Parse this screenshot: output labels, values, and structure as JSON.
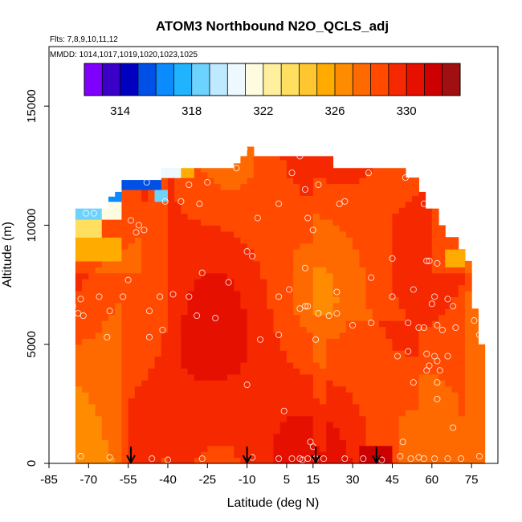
{
  "chart_data": {
    "type": "heatmap",
    "title": "ATOM3 Northbound N2O_QCLS_adj",
    "flights_text": "Flts: 7,8,9,10,11,12",
    "dates_text": "MMDD: 1014,1017,1019,1020,1023,1025",
    "xlabel": "Latitude (deg N)",
    "ylabel": "Altitude (m)",
    "xlim": [
      -85,
      85
    ],
    "ylim": [
      0,
      17500
    ],
    "x_ticks": [
      -85,
      -70,
      -55,
      -40,
      -25,
      -10,
      5,
      15,
      30,
      45,
      60,
      75
    ],
    "x_tick_labels": [
      "-85",
      "-70",
      "-55",
      "-40",
      "-25",
      "-10",
      "5",
      "15",
      "30",
      "45",
      "60",
      "75"
    ],
    "y_ticks": [
      0,
      5000,
      10000,
      15000
    ],
    "y_tick_labels": [
      "0",
      "5000",
      "10000",
      "15000"
    ],
    "colorbar": {
      "min": 312,
      "max": 333,
      "step": 1,
      "tick_values": [
        314,
        318,
        322,
        326,
        330
      ],
      "tick_labels": [
        "314",
        "318",
        "322",
        "326",
        "330"
      ],
      "colors": [
        "#7f00ff",
        "#3a00c8",
        "#0000c0",
        "#0050e6",
        "#0a8cff",
        "#20b4ff",
        "#6ed2ff",
        "#bfe9ff",
        "#eef8ff",
        "#fffbe0",
        "#fff0a0",
        "#ffdf60",
        "#ffc630",
        "#ffab00",
        "#ff8c00",
        "#ff6a00",
        "#ff4a00",
        "#f52800",
        "#e61000",
        "#cc0000",
        "#a01010"
      ]
    },
    "arrows_lat": [
      -54,
      -10,
      16,
      39
    ],
    "x_grid": [
      -75,
      -72.5,
      -70,
      -67.5,
      -65,
      -62.5,
      -60,
      -57.5,
      -55,
      -52.5,
      -50,
      -47.5,
      -45,
      -42.5,
      -40,
      -37.5,
      -35,
      -32.5,
      -30,
      -27.5,
      -25,
      -22.5,
      -20,
      -17.5,
      -15,
      -12.5,
      -10,
      -7.5,
      -5,
      -2.5,
      0,
      2.5,
      5,
      7.5,
      10,
      12.5,
      15,
      17.5,
      20,
      22.5,
      25,
      27.5,
      30,
      32.5,
      35,
      37.5,
      40,
      42.5,
      45,
      47.5,
      50,
      52.5,
      55,
      57.5,
      60,
      62.5,
      65,
      67.5,
      70,
      72.5,
      75,
      77.5
    ],
    "coverage_top_m": [
      {
        "lat": -80,
        "top": 7900
      },
      {
        "lat": -78,
        "top": 9000
      },
      {
        "lat": -76,
        "top": 10700
      },
      {
        "lat": -64,
        "top": 10700
      },
      {
        "lat": -62,
        "top": 11200
      },
      {
        "lat": -60,
        "top": 11400
      },
      {
        "lat": -58,
        "top": 11900
      },
      {
        "lat": -44,
        "top": 11900
      },
      {
        "lat": -42,
        "top": 12400
      },
      {
        "lat": -16,
        "top": 12400
      },
      {
        "lat": -14,
        "top": 12600
      },
      {
        "lat": -12,
        "top": 12900
      },
      {
        "lat": -10,
        "top": 13300
      },
      {
        "lat": -8,
        "top": 12900
      },
      {
        "lat": 20,
        "top": 12900
      },
      {
        "lat": 22,
        "top": 12400
      },
      {
        "lat": 48,
        "top": 12400
      },
      {
        "lat": 50,
        "top": 12000
      },
      {
        "lat": 54,
        "top": 11400
      },
      {
        "lat": 58,
        "top": 10700
      },
      {
        "lat": 62,
        "top": 10000
      },
      {
        "lat": 66,
        "top": 9500
      },
      {
        "lat": 70,
        "top": 9000
      },
      {
        "lat": 72,
        "top": 8500
      },
      {
        "lat": 74,
        "top": 7200
      },
      {
        "lat": 76,
        "top": 6500
      },
      {
        "lat": 78,
        "top": 5000
      },
      {
        "lat": 79,
        "top": 0
      }
    ],
    "low_patches": [
      {
        "lat_min": -58,
        "lat_max": -42,
        "alt_min": 11500,
        "alt_max": 12000,
        "value": 315
      },
      {
        "lat_min": -62,
        "lat_max": -57,
        "alt_min": 10900,
        "alt_max": 11500,
        "value": 316
      },
      {
        "lat_min": -46,
        "lat_max": -40,
        "alt_min": 11000,
        "alt_max": 11600,
        "value": 318
      },
      {
        "lat_min": -42,
        "lat_max": -34,
        "alt_min": 12000,
        "alt_max": 12400,
        "value": 320
      },
      {
        "lat_min": -76,
        "lat_max": -64,
        "alt_min": 10200,
        "alt_max": 10700,
        "value": 318
      },
      {
        "lat_min": -64,
        "lat_max": -58,
        "alt_min": 10300,
        "alt_max": 10900,
        "value": 321
      },
      {
        "lat_min": -78,
        "lat_max": -66,
        "alt_min": 9600,
        "alt_max": 10200,
        "value": 323
      },
      {
        "lat_min": -34,
        "lat_max": -29,
        "alt_min": 12000,
        "alt_max": 12400,
        "value": 325
      },
      {
        "lat_min": -78,
        "lat_max": -58,
        "alt_min": 8500,
        "alt_max": 9600,
        "value": 325
      },
      {
        "lat_min": 65,
        "lat_max": 72,
        "alt_min": 8300,
        "alt_max": 9000,
        "value": 325
      }
    ],
    "high_patches": [
      {
        "lat_min": 33,
        "lat_max": 44,
        "alt_min": 0,
        "alt_max": 800,
        "value": 331
      }
    ],
    "sample_points": [
      {
        "lat": -11,
        "alt": 13200
      },
      {
        "lat": 10,
        "alt": 12900
      },
      {
        "lat": -14,
        "alt": 12400
      },
      {
        "lat": -48,
        "alt": 11800
      },
      {
        "lat": -32,
        "alt": 11700
      },
      {
        "lat": -25,
        "alt": 11800
      },
      {
        "lat": 7,
        "alt": 12200
      },
      {
        "lat": 17,
        "alt": 11700
      },
      {
        "lat": 36,
        "alt": 12200
      },
      {
        "lat": 50,
        "alt": 12000
      },
      {
        "lat": -41,
        "alt": 11000
      },
      {
        "lat": -35,
        "alt": 11000
      },
      {
        "lat": -28,
        "alt": 10900
      },
      {
        "lat": 12,
        "alt": 11500
      },
      {
        "lat": 25,
        "alt": 10900
      },
      {
        "lat": 27,
        "alt": 11000
      },
      {
        "lat": -71,
        "alt": 10500
      },
      {
        "lat": -68,
        "alt": 10500
      },
      {
        "lat": -54,
        "alt": 10200
      },
      {
        "lat": -51,
        "alt": 10000
      },
      {
        "lat": -49,
        "alt": 9800
      },
      {
        "lat": -52,
        "alt": 9700
      },
      {
        "lat": -6,
        "alt": 10300
      },
      {
        "lat": 2,
        "alt": 10900
      },
      {
        "lat": 13,
        "alt": 10300
      },
      {
        "lat": 15,
        "alt": 9800
      },
      {
        "lat": 57,
        "alt": 10900
      },
      {
        "lat": -10,
        "alt": 8900
      },
      {
        "lat": -8,
        "alt": 8700
      },
      {
        "lat": 45,
        "alt": 8600
      },
      {
        "lat": 58,
        "alt": 8500
      },
      {
        "lat": 59,
        "alt": 8500
      },
      {
        "lat": 62,
        "alt": 8400
      },
      {
        "lat": -80,
        "alt": 7800
      },
      {
        "lat": -55,
        "alt": 7700
      },
      {
        "lat": -27,
        "alt": 8000
      },
      {
        "lat": 12,
        "alt": 8200
      },
      {
        "lat": 37,
        "alt": 7800
      },
      {
        "lat": -73,
        "alt": 6900
      },
      {
        "lat": -66,
        "alt": 7000
      },
      {
        "lat": -57,
        "alt": 7000
      },
      {
        "lat": -43,
        "alt": 7000
      },
      {
        "lat": -38,
        "alt": 7100
      },
      {
        "lat": -32,
        "alt": 7000
      },
      {
        "lat": -17,
        "alt": 7600
      },
      {
        "lat": 2,
        "alt": 7000
      },
      {
        "lat": 6,
        "alt": 7300
      },
      {
        "lat": 24,
        "alt": 7200
      },
      {
        "lat": 45,
        "alt": 7000
      },
      {
        "lat": 53,
        "alt": 7300
      },
      {
        "lat": 61,
        "alt": 7000
      },
      {
        "lat": 66,
        "alt": 6900
      },
      {
        "lat": 68,
        "alt": 6600
      },
      {
        "lat": 60,
        "alt": 6700
      },
      {
        "lat": -76,
        "alt": 6600
      },
      {
        "lat": -74,
        "alt": 6300
      },
      {
        "lat": -72,
        "alt": 6200
      },
      {
        "lat": -62,
        "alt": 6400
      },
      {
        "lat": -47,
        "alt": 6400
      },
      {
        "lat": -29,
        "alt": 6200
      },
      {
        "lat": -22,
        "alt": 6100
      },
      {
        "lat": 10,
        "alt": 6500
      },
      {
        "lat": 12,
        "alt": 6600
      },
      {
        "lat": 13,
        "alt": 6600
      },
      {
        "lat": 17,
        "alt": 6300
      },
      {
        "lat": 21,
        "alt": 6200
      },
      {
        "lat": 24,
        "alt": 6300
      },
      {
        "lat": 30,
        "alt": 5800
      },
      {
        "lat": 37,
        "alt": 5900
      },
      {
        "lat": 51,
        "alt": 5900
      },
      {
        "lat": 55,
        "alt": 5700
      },
      {
        "lat": 57,
        "alt": 5700
      },
      {
        "lat": 62,
        "alt": 5800
      },
      {
        "lat": 64,
        "alt": 5600
      },
      {
        "lat": 69,
        "alt": 5700
      },
      {
        "lat": 76,
        "alt": 6000
      },
      {
        "lat": 78,
        "alt": 5400
      },
      {
        "lat": -78,
        "alt": 5200
      },
      {
        "lat": -63,
        "alt": 5300
      },
      {
        "lat": -42,
        "alt": 5600
      },
      {
        "lat": -47,
        "alt": 5300
      },
      {
        "lat": -5,
        "alt": 5200
      },
      {
        "lat": 2,
        "alt": 5400
      },
      {
        "lat": 16,
        "alt": 5200
      },
      {
        "lat": 51,
        "alt": 4700
      },
      {
        "lat": 47,
        "alt": 4500
      },
      {
        "lat": 58,
        "alt": 4600
      },
      {
        "lat": 61,
        "alt": 4500
      },
      {
        "lat": 66,
        "alt": 4500
      },
      {
        "lat": 62,
        "alt": 4300
      },
      {
        "lat": 58,
        "alt": 3900
      },
      {
        "lat": 59,
        "alt": 4100
      },
      {
        "lat": 63,
        "alt": 3900
      },
      {
        "lat": 53,
        "alt": 3400
      },
      {
        "lat": 62,
        "alt": 3400
      },
      {
        "lat": -10,
        "alt": 3300
      },
      {
        "lat": 62,
        "alt": 2700
      },
      {
        "lat": 4,
        "alt": 2200
      },
      {
        "lat": 68,
        "alt": 1500
      },
      {
        "lat": 14,
        "alt": 900
      },
      {
        "lat": 15,
        "alt": 700
      },
      {
        "lat": 49,
        "alt": 900
      },
      {
        "lat": -73,
        "alt": 300
      },
      {
        "lat": -62,
        "alt": 250
      },
      {
        "lat": -46,
        "alt": 200
      },
      {
        "lat": -40,
        "alt": 150
      },
      {
        "lat": -27,
        "alt": 200
      },
      {
        "lat": -8,
        "alt": 250
      },
      {
        "lat": 2,
        "alt": 200
      },
      {
        "lat": 7,
        "alt": 200
      },
      {
        "lat": 10,
        "alt": 200
      },
      {
        "lat": 11,
        "alt": 150
      },
      {
        "lat": 13,
        "alt": 200
      },
      {
        "lat": 16,
        "alt": 200
      },
      {
        "lat": 19,
        "alt": 200
      },
      {
        "lat": 27,
        "alt": 200
      },
      {
        "lat": 34,
        "alt": 200
      },
      {
        "lat": 41,
        "alt": 150
      },
      {
        "lat": 48,
        "alt": 300
      },
      {
        "lat": 52,
        "alt": 200
      },
      {
        "lat": 55,
        "alt": 250
      },
      {
        "lat": 57,
        "alt": 200
      },
      {
        "lat": 61,
        "alt": 200
      },
      {
        "lat": 66,
        "alt": 200
      },
      {
        "lat": 71,
        "alt": 200
      },
      {
        "lat": 78,
        "alt": 300
      }
    ]
  }
}
